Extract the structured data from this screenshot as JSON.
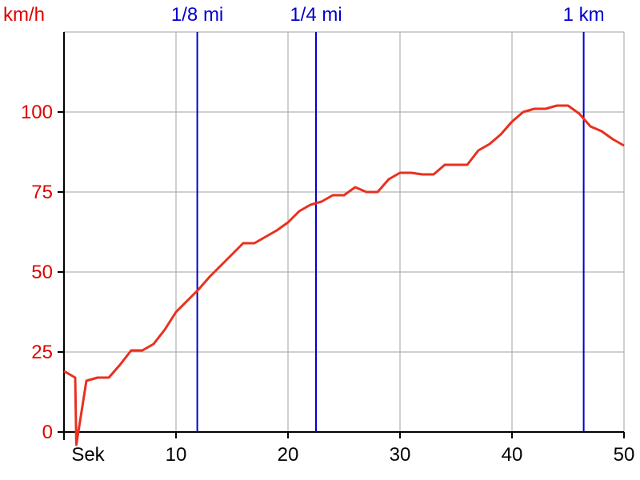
{
  "chart_data": {
    "type": "line",
    "title": "",
    "ylabel": "km/h",
    "xlabel": "Sek",
    "xlim": [
      0,
      50
    ],
    "ylim": [
      0,
      125
    ],
    "y_ticks": [
      0,
      25,
      50,
      75,
      100
    ],
    "x_ticks": [
      10,
      20,
      30,
      40,
      50
    ],
    "grid": true,
    "colors": {
      "series": "#e8301f",
      "y_axis_text": "#e00000",
      "markers": "#0000cc",
      "grid": "#a0a0a0",
      "axis": "#000000"
    },
    "series": [
      {
        "x": [
          0,
          1,
          1.1,
          2,
          3,
          4,
          5,
          6,
          7,
          8,
          9,
          10,
          11,
          12,
          13,
          14,
          15,
          16,
          17,
          18,
          19,
          20,
          21,
          22,
          23,
          24,
          25,
          26,
          27,
          28,
          29,
          30,
          31,
          32,
          33,
          34,
          35,
          36,
          37,
          38,
          39,
          40,
          41,
          42,
          43,
          44,
          45,
          46,
          47,
          48,
          49,
          50
        ],
        "y": [
          19,
          17,
          -4,
          16,
          17,
          17,
          21,
          25.5,
          25.5,
          27.5,
          32,
          37.5,
          41,
          44.5,
          48.5,
          52,
          55.5,
          59,
          59,
          61,
          63,
          65.5,
          69,
          71,
          72,
          74,
          74,
          76.5,
          75,
          75,
          79,
          81,
          81,
          80.5,
          80.5,
          83.5,
          83.5,
          83.5,
          88,
          90,
          93,
          97,
          100,
          101,
          101,
          102,
          102,
          99.5,
          95.5,
          94,
          91.5,
          89.5
        ]
      }
    ],
    "markers": [
      {
        "label": "1/8 mi",
        "x": 11.9
      },
      {
        "label": "1/4 mi",
        "x": 22.5
      },
      {
        "label": "1 km",
        "x": 46.4
      }
    ]
  }
}
